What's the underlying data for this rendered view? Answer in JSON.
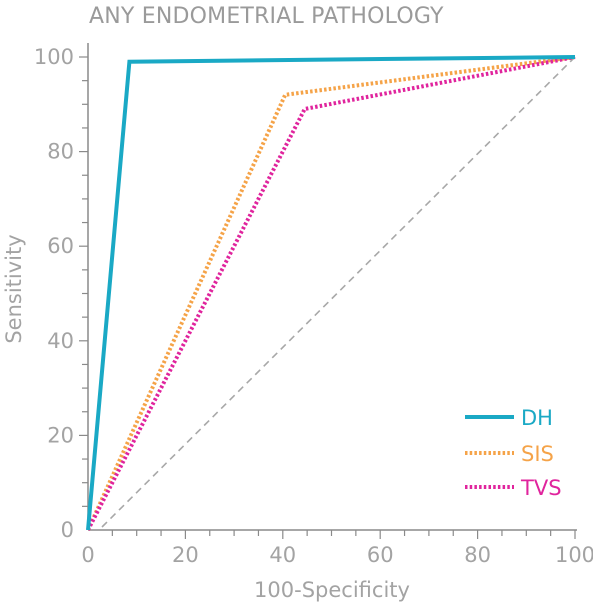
{
  "chart_data": {
    "type": "line",
    "title": "ANY ENDOMETRIAL PATHOLOGY",
    "xlabel": "100-Specificity",
    "ylabel": "Sensitivity",
    "xlim": [
      0,
      100
    ],
    "ylim": [
      0,
      100
    ],
    "x_ticks": [
      0,
      20,
      40,
      60,
      80,
      100
    ],
    "y_ticks": [
      0,
      20,
      40,
      60,
      80,
      100
    ],
    "legend_position": "bottom-right",
    "reference_line": [
      [
        0,
        0
      ],
      [
        100,
        100
      ]
    ],
    "series": [
      {
        "name": "DH",
        "color": "#1aa9c5",
        "style": "solid",
        "x": [
          0,
          8.5,
          100
        ],
        "y": [
          0,
          99,
          100
        ]
      },
      {
        "name": "SIS",
        "color": "#f5a348",
        "style": "dotted",
        "x": [
          0,
          40.5,
          100
        ],
        "y": [
          0,
          92,
          100
        ]
      },
      {
        "name": "TVS",
        "color": "#e0249d",
        "style": "dotted",
        "x": [
          0,
          44.5,
          100
        ],
        "y": [
          0,
          89,
          100
        ]
      }
    ]
  }
}
